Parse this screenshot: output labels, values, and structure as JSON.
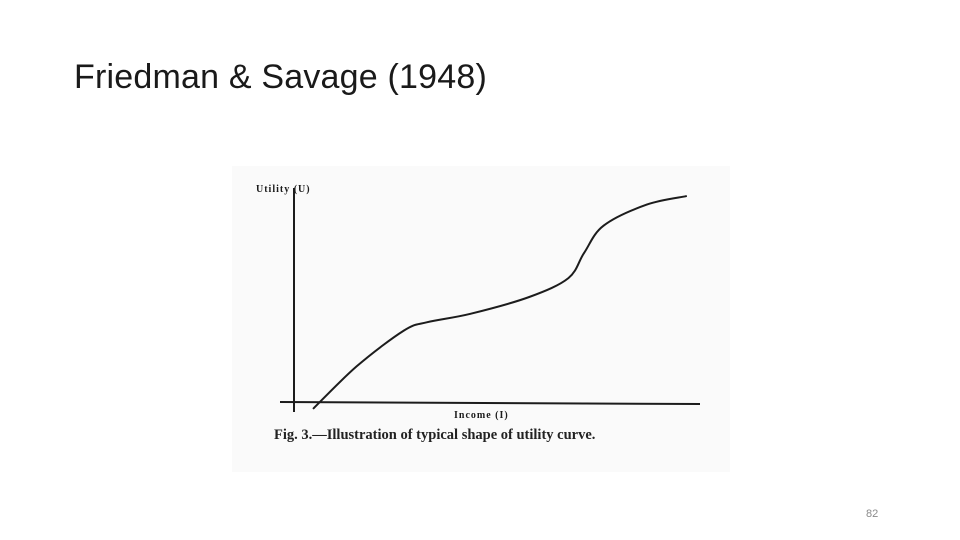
{
  "slide": {
    "title": "Friedman & Savage (1948)",
    "page_number": "82"
  },
  "chart_data": {
    "type": "line",
    "title": "",
    "xlabel": "Income (I)",
    "ylabel": "Utility (U)",
    "caption": "Fig. 3.—Illustration of typical shape of utility curve.",
    "xlim": [
      0,
      10
    ],
    "ylim": [
      0,
      10
    ],
    "grid": false,
    "legend": "none",
    "ticks": false,
    "series": [
      {
        "x": [
          0.5,
          1.6,
          2.8,
          3.4,
          4.5,
          6.0,
          7.0,
          7.4,
          7.9,
          9.0,
          10.0
        ],
        "y": [
          -0.3,
          1.7,
          3.4,
          3.8,
          4.2,
          5.0,
          5.9,
          7.1,
          8.4,
          9.4,
          9.8
        ]
      }
    ],
    "colors": {
      "line": "#1c1c1c",
      "axis": "#1c1c1c",
      "caption": "#222222"
    }
  }
}
